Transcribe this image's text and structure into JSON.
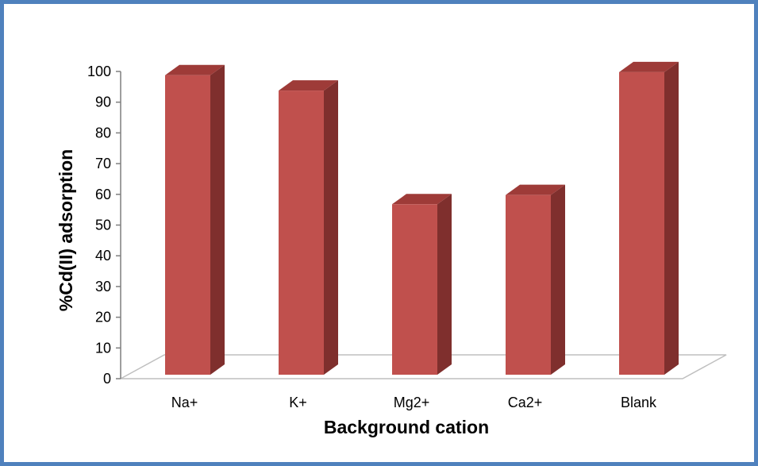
{
  "chart_data": {
    "type": "bar",
    "title": "",
    "xlabel": "Background cation",
    "ylabel": "%Cd(II) adsorption",
    "categories": [
      "Na+",
      "K+",
      "Mg2+",
      "Ca2+",
      "Blank"
    ],
    "values": [
      98,
      93,
      56,
      59,
      99
    ],
    "ylim": [
      0,
      100
    ],
    "yticks": [
      0,
      10,
      20,
      30,
      40,
      50,
      60,
      70,
      80,
      90,
      100
    ],
    "grid": false,
    "legend": "none",
    "three_d": true,
    "colors": {
      "bar_front": "#c0504d",
      "bar_side": "#7f2f2d",
      "bar_top": "#9e3b38",
      "floor": "#ffffff",
      "floor_edge": "#bfbfbf",
      "frame": "#4f81bd"
    }
  }
}
